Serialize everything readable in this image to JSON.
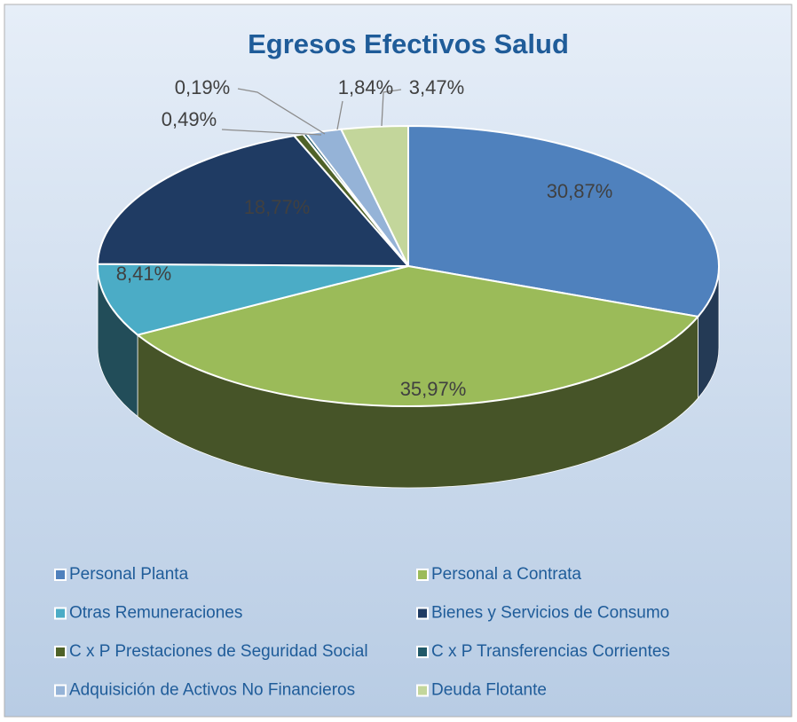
{
  "chart_data": {
    "type": "pie",
    "title": "Egresos Efectivos Salud",
    "categories": [
      "Personal Planta",
      "Personal a Contrata",
      "Otras Remuneraciones",
      "Bienes y Servicios de Consumo",
      "C x P Prestaciones de Seguridad Social",
      "C x P Transferencias Corrientes",
      "Adquisición de Activos No Financieros",
      "Deuda Flotante"
    ],
    "values": [
      30.87,
      35.97,
      8.41,
      18.77,
      0.49,
      0.19,
      1.84,
      3.47
    ],
    "value_labels": [
      "30,87%",
      "35,97%",
      "8,41%",
      "18,77%",
      "0,49%",
      "0,19%",
      "1,84%",
      "3,47%"
    ],
    "colors": [
      "#4f81bd",
      "#9bbb59",
      "#4bacc6",
      "#1f3b63",
      "#4f6228",
      "#215968",
      "#95b3d7",
      "#c3d69b"
    ],
    "legend": "bottom"
  }
}
